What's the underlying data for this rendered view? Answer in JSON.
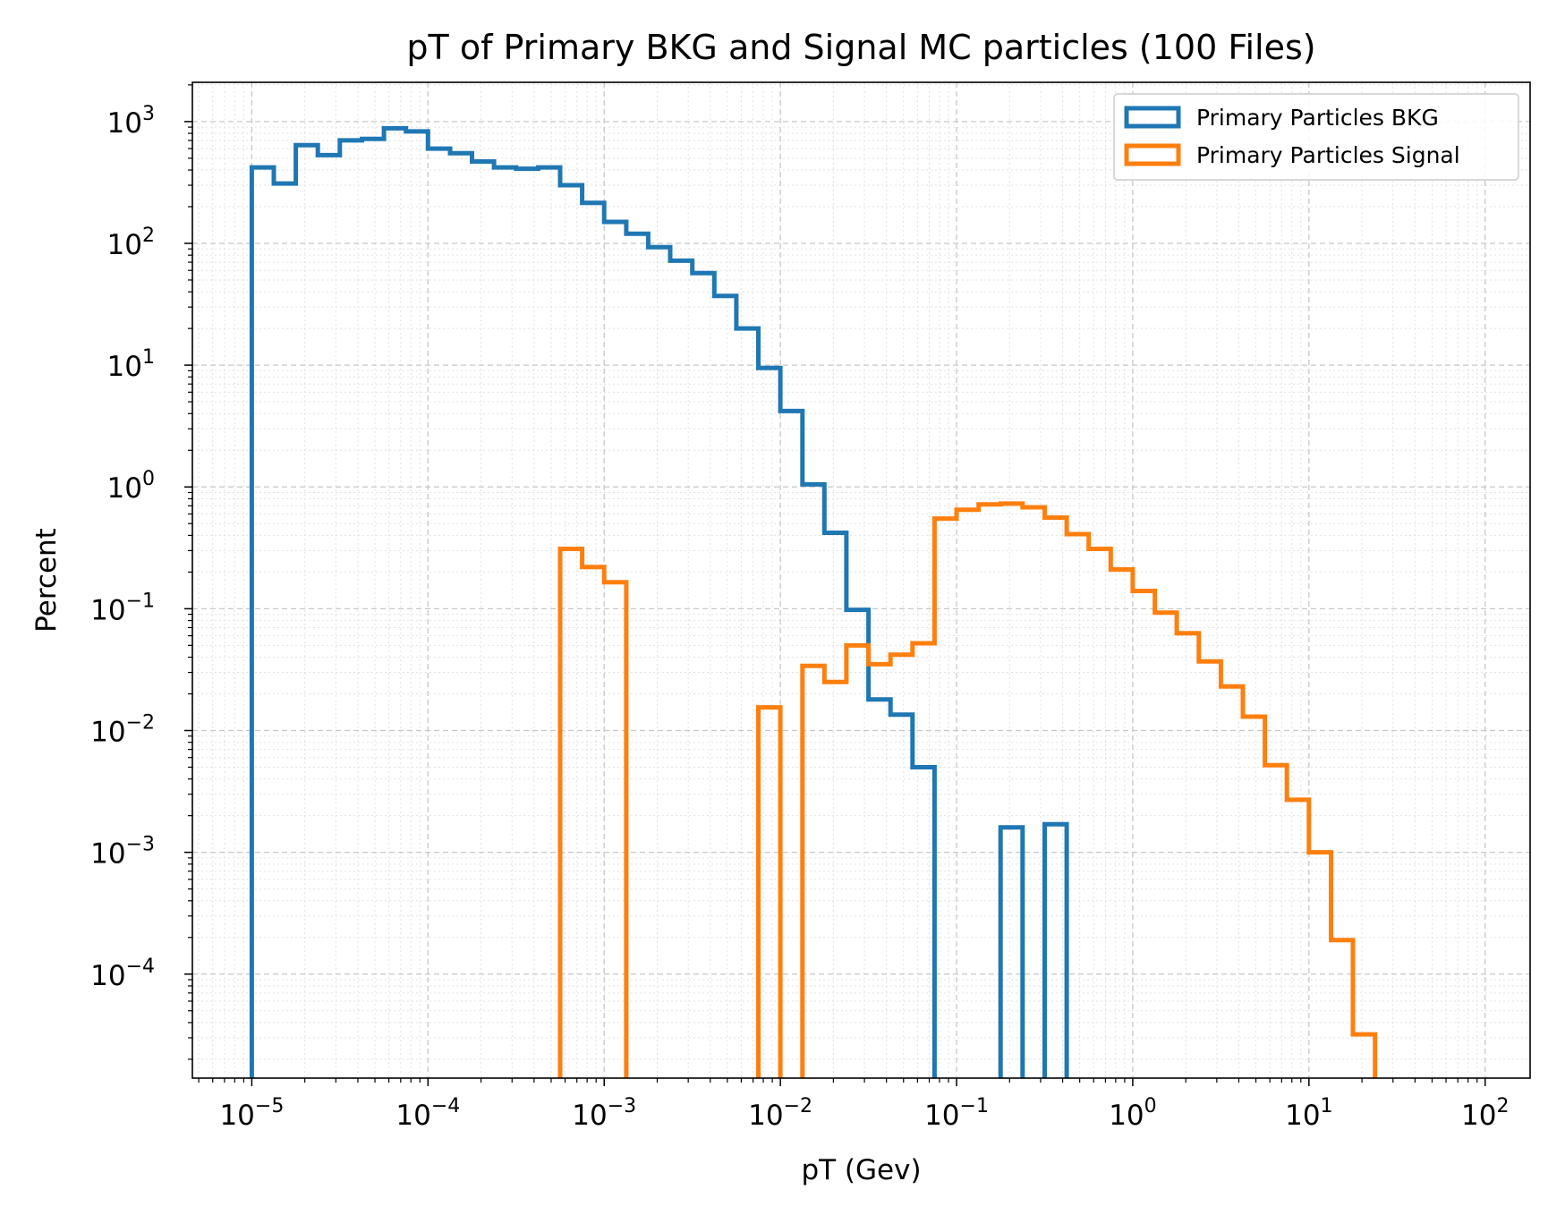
{
  "chart_data": {
    "type": "histogram",
    "title": "pT of Primary BKG and Signal MC particles (100 Files)",
    "xlabel": "pT (Gev)",
    "ylabel": "Percent",
    "xscale": "log",
    "yscale": "log",
    "xlim": [
      4.6e-06,
      180
    ],
    "ylim": [
      1.4e-05,
      2100
    ],
    "grid": "major dashed, minor dotted",
    "legend_position": "top-right",
    "x_ticks": [
      {
        "value": 1e-05,
        "base": "10",
        "exp": "−5"
      },
      {
        "value": 0.0001,
        "base": "10",
        "exp": "−4"
      },
      {
        "value": 0.001,
        "base": "10",
        "exp": "−3"
      },
      {
        "value": 0.01,
        "base": "10",
        "exp": "−2"
      },
      {
        "value": 0.1,
        "base": "10",
        "exp": "−1"
      },
      {
        "value": 1,
        "base": "10",
        "exp": "0"
      },
      {
        "value": 10,
        "base": "10",
        "exp": "1"
      },
      {
        "value": 100,
        "base": "10",
        "exp": "2"
      }
    ],
    "y_ticks": [
      {
        "value": 0.0001,
        "base": "10",
        "exp": "−4"
      },
      {
        "value": 0.001,
        "base": "10",
        "exp": "−3"
      },
      {
        "value": 0.01,
        "base": "10",
        "exp": "−2"
      },
      {
        "value": 0.1,
        "base": "10",
        "exp": "−1"
      },
      {
        "value": 1,
        "base": "10",
        "exp": "0"
      },
      {
        "value": 10,
        "base": "10",
        "exp": "1"
      },
      {
        "value": 100,
        "base": "10",
        "exp": "2"
      },
      {
        "value": 1000,
        "base": "10",
        "exp": "3"
      }
    ],
    "bin_edges": [
      1e-05,
      1.334e-05,
      1.778e-05,
      2.371e-05,
      3.162e-05,
      4.217e-05,
      5.623e-05,
      7.499e-05,
      0.0001,
      0.0001334,
      0.0001778,
      0.0002371,
      0.0003162,
      0.0004217,
      0.0005623,
      0.0007499,
      0.001,
      0.001334,
      0.001778,
      0.002371,
      0.003162,
      0.004217,
      0.005623,
      0.007499,
      0.01,
      0.01334,
      0.01778,
      0.02371,
      0.03162,
      0.04217,
      0.05623,
      0.07499,
      0.1,
      0.1334,
      0.1778,
      0.2371,
      0.3162,
      0.4217,
      0.5623,
      0.7499,
      1.0,
      1.334,
      1.778,
      2.371,
      3.162,
      4.217,
      5.623,
      7.499,
      10.0,
      13.34,
      17.78,
      23.71,
      31.62,
      42.17
    ],
    "series": [
      {
        "name": "Primary Particles BKG",
        "color": "#1f77b4",
        "values": [
          420,
          310,
          640,
          530,
          700,
          720,
          880,
          830,
          600,
          550,
          470,
          420,
          410,
          420,
          300,
          215,
          150,
          120,
          93,
          72,
          57,
          37,
          20,
          9.5,
          4.2,
          1.05,
          0.42,
          0.098,
          0.018,
          0.0135,
          0.005,
          0,
          0,
          0,
          0.0016,
          0,
          0.0017,
          0,
          0,
          0,
          0,
          0,
          0,
          0,
          0,
          0,
          0,
          0,
          0,
          0,
          0,
          0,
          0
        ]
      },
      {
        "name": "Primary Particles Signal",
        "color": "#ff7f0e",
        "values": [
          0,
          0,
          0,
          0,
          0,
          0,
          0,
          0,
          0,
          0,
          0,
          0,
          0,
          0,
          0.31,
          0.22,
          0.165,
          0,
          0,
          0,
          0,
          0,
          0,
          0.0155,
          0,
          0.034,
          0.025,
          0.05,
          0.035,
          0.042,
          0.052,
          0.55,
          0.65,
          0.72,
          0.73,
          0.68,
          0.56,
          0.41,
          0.31,
          0.21,
          0.14,
          0.093,
          0.063,
          0.037,
          0.023,
          0.013,
          0.0052,
          0.0027,
          0.001,
          0.00019,
          3.2e-05,
          0,
          0
        ]
      }
    ]
  }
}
